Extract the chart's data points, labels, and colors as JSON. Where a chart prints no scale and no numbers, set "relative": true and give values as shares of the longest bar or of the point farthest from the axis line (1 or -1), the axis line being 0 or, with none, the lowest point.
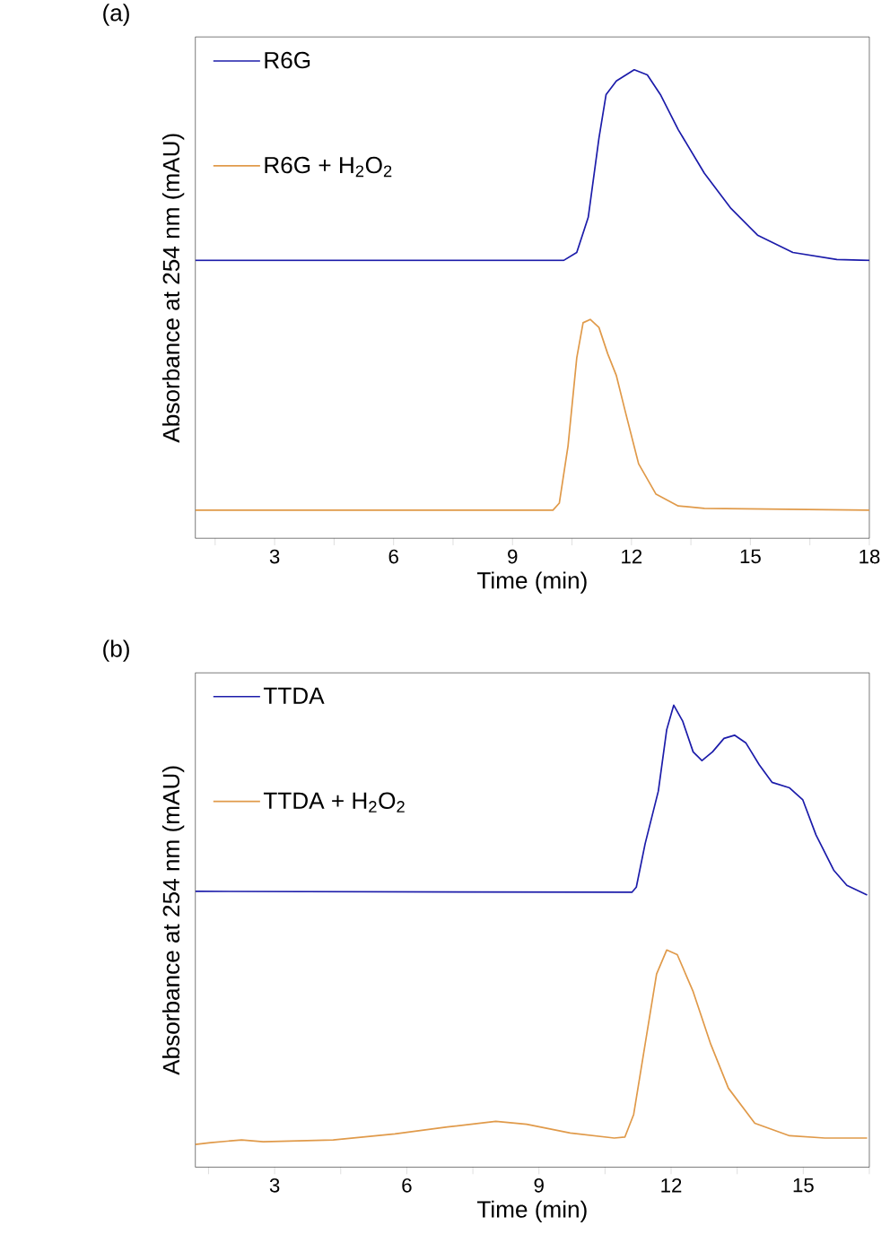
{
  "chart_data": [
    {
      "type": "line",
      "title": "(a)",
      "xlabel": "Time (min)",
      "ylabel": "Absorbance at 254 nm (mAU)",
      "relative": true,
      "tick_labels": "x",
      "legend": "top left",
      "xlim": [
        1,
        18
      ],
      "xticks": [
        {
          "value": 1.5,
          "label": null
        },
        3,
        {
          "value": 4.5,
          "label": null
        },
        6,
        {
          "value": 7.5,
          "label": null
        },
        9,
        {
          "value": 10.5,
          "label": null
        },
        12,
        {
          "value": 13.5,
          "label": null
        },
        15,
        {
          "value": 16.5,
          "label": null
        },
        18
      ],
      "series": [
        {
          "name": "R6G",
          "color": "#1c1caa",
          "x": [
            1,
            10.29,
            10.62,
            10.91,
            11.18,
            11.36,
            11.62,
            12.07,
            12.4,
            12.73,
            13.18,
            13.84,
            14.51,
            15.18,
            16.07,
            17.18,
            18.0
          ],
          "values": [
            0.593,
            0.593,
            0.61,
            0.685,
            0.854,
            0.947,
            0.976,
            1.0,
            0.989,
            0.947,
            0.872,
            0.779,
            0.704,
            0.647,
            0.61,
            0.595,
            0.593
          ]
        },
        {
          "name": "R6G + H$_{2}$O$_{2}$",
          "color": "#e09a4a",
          "x": [
            1,
            10.02,
            10.18,
            10.4,
            10.62,
            10.78,
            10.96,
            11.18,
            11.4,
            11.62,
            11.84,
            12.18,
            12.62,
            13.18,
            13.84,
            18.0
          ],
          "values": [
            0.06,
            0.06,
            0.075,
            0.197,
            0.385,
            0.46,
            0.467,
            0.45,
            0.394,
            0.347,
            0.272,
            0.159,
            0.094,
            0.069,
            0.064,
            0.06
          ]
        }
      ]
    },
    {
      "type": "line",
      "title": "(b)",
      "xlabel": "Time (min)",
      "ylabel": "Absorbance at 254 nm (mAU)",
      "relative": true,
      "tick_labels": "x",
      "legend": "top left",
      "xlim": [
        1.2,
        16.5
      ],
      "xticks": [
        {
          "value": 1.5,
          "label": null
        },
        3,
        {
          "value": 4.5,
          "label": null
        },
        6,
        {
          "value": 7.5,
          "label": null
        },
        9,
        {
          "value": 10.5,
          "label": null
        },
        12,
        {
          "value": 13.5,
          "label": null
        },
        15,
        {
          "value": 16.5,
          "label": null
        }
      ],
      "series": [
        {
          "name": "TTDA",
          "color": "#1c1caa",
          "x": [
            1.2,
            11.11,
            11.21,
            11.41,
            11.71,
            11.9,
            12.06,
            12.26,
            12.5,
            12.7,
            12.94,
            13.2,
            13.44,
            13.7,
            14.0,
            14.29,
            14.69,
            14.99,
            15.29,
            15.69,
            15.99,
            16.45
          ],
          "values": [
            0.597,
            0.595,
            0.606,
            0.7,
            0.814,
            0.947,
            1.0,
            0.966,
            0.899,
            0.88,
            0.899,
            0.928,
            0.935,
            0.918,
            0.871,
            0.833,
            0.821,
            0.795,
            0.719,
            0.643,
            0.61,
            0.589
          ]
        },
        {
          "name": "TTDA + H$_{2}$O$_{2}$",
          "color": "#e09a4a",
          "x": [
            1.2,
            1.55,
            2.25,
            2.74,
            4.33,
            5.73,
            6.92,
            8.02,
            8.72,
            9.71,
            10.71,
            10.95,
            11.15,
            11.41,
            11.67,
            11.9,
            12.14,
            12.5,
            12.9,
            13.3,
            13.9,
            14.69,
            15.49,
            16.45
          ],
          "values": [
            0.049,
            0.053,
            0.059,
            0.055,
            0.059,
            0.072,
            0.087,
            0.099,
            0.093,
            0.074,
            0.063,
            0.065,
            0.114,
            0.266,
            0.418,
            0.47,
            0.46,
            0.38,
            0.266,
            0.171,
            0.095,
            0.068,
            0.063,
            0.063
          ]
        }
      ]
    }
  ]
}
